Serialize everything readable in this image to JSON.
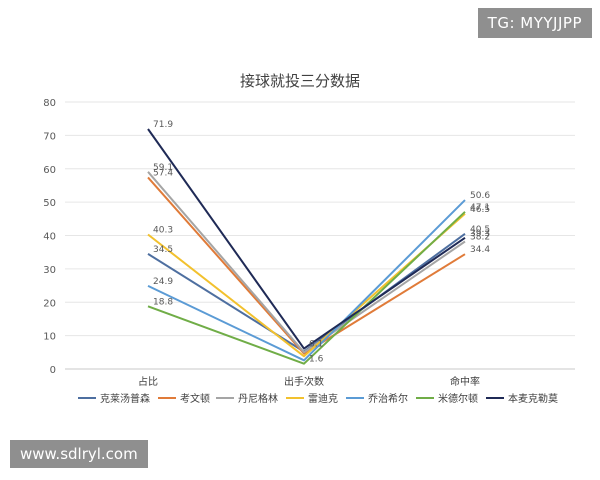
{
  "watermarks": {
    "top_right": "TG: MYYJJPP",
    "bottom_left": "www.sdlryl.com"
  },
  "chart_data": {
    "type": "line",
    "title": "接球就投三分数据",
    "categories": [
      "占比",
      "出手次数",
      "命中率"
    ],
    "ylim": [
      0,
      80
    ],
    "yticks": [
      0,
      10,
      20,
      30,
      40,
      50,
      60,
      70,
      80
    ],
    "grid": true,
    "legend_position": "bottom",
    "series": [
      {
        "name": "克莱汤普森",
        "color": "#4e6fa0",
        "values": [
          34.5,
          5.2,
          40.5
        ],
        "labels": [
          "34.5",
          "",
          "40.5"
        ]
      },
      {
        "name": "考文顿",
        "color": "#e07b39",
        "values": [
          57.4,
          4.6,
          34.4
        ],
        "labels": [
          "57.4",
          "",
          "34.4"
        ]
      },
      {
        "name": "丹尼格林",
        "color": "#a5a5a5",
        "values": [
          59.1,
          5.0,
          38.2
        ],
        "labels": [
          "59.1",
          "",
          "38.2"
        ]
      },
      {
        "name": "雷迪克",
        "color": "#f2c12e",
        "values": [
          40.3,
          3.8,
          46.5
        ],
        "labels": [
          "40.3",
          "",
          "46.5"
        ]
      },
      {
        "name": "乔治希尔",
        "color": "#5b9bd5",
        "values": [
          24.9,
          2.6,
          50.6
        ],
        "labels": [
          "24.9",
          "",
          "50.6"
        ]
      },
      {
        "name": "米德尔顿",
        "color": "#70ad47",
        "values": [
          18.8,
          1.6,
          47.1
        ],
        "labels": [
          "18.8",
          "1.6",
          "47.1"
        ]
      },
      {
        "name": "本麦克勒莫",
        "color": "#1f2a56",
        "values": [
          71.9,
          6.1,
          39.3
        ],
        "labels": [
          "71.9",
          "6.1",
          "39.3"
        ]
      }
    ]
  }
}
